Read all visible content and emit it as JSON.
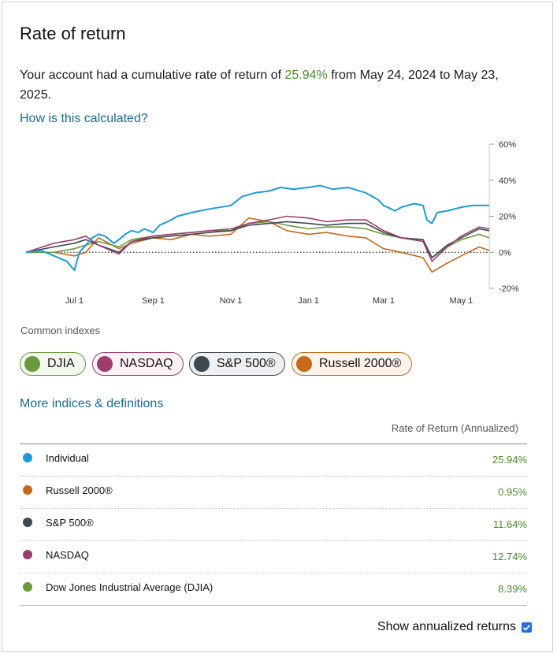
{
  "page": {
    "title": "Rate of return",
    "summary": {
      "prefix": "Your account had a cumulative rate of return of ",
      "pct": "25.94%",
      "suffix": " from May 24, 2024 to May 23, 2025."
    },
    "how_link": "How is this calculated?",
    "common_label": "Common indexes",
    "chips": [
      {
        "label": "DJIA",
        "color": "#6b9a3c",
        "border": "#6b9a3c",
        "bg": "#f3f8ee"
      },
      {
        "label": "NASDAQ",
        "color": "#9b3d6e",
        "border": "#9b3d6e",
        "bg": "#fbf1f6"
      },
      {
        "label": "S&P 500®",
        "color": "#3d4852",
        "border": "#3d4852",
        "bg": "#eef0f2"
      },
      {
        "label": "Russell 2000®",
        "color": "#c46a1a",
        "border": "#c46a1a",
        "bg": "#fcf3ea"
      }
    ],
    "more_link": "More indices & definitions",
    "table_header": "Rate of Return (Annualized)",
    "rows": [
      {
        "name": "Individual",
        "value": "25.94%",
        "color": "#1d9ad6"
      },
      {
        "name": "Russell 2000®",
        "value": "0.95%",
        "color": "#c46a1a"
      },
      {
        "name": "S&P 500®",
        "value": "11.64%",
        "color": "#3d4852"
      },
      {
        "name": "NASDAQ",
        "value": "12.74%",
        "color": "#9b3d6e"
      },
      {
        "name": "Dow Jones Industrial Average (DJIA)",
        "value": "8.39%",
        "color": "#6b9a3c"
      }
    ],
    "show_annualized": "Show annualized returns"
  },
  "chart_data": {
    "type": "line",
    "x_tick_labels": [
      "Jul 1",
      "Sep 1",
      "Nov 1",
      "Jan 1",
      "Mar 1",
      "May 1"
    ],
    "y_tick_labels": [
      "60%",
      "40%",
      "20%",
      "0%",
      "-20%"
    ],
    "ylim": [
      -20,
      60
    ],
    "x_range": [
      "2024-05-24",
      "2025-05-23"
    ],
    "zero_line": "dotted",
    "series": [
      {
        "name": "Individual",
        "color": "#1d9ad6",
        "x": [
          "2024-05-24",
          "2024-06-05",
          "2024-06-15",
          "2024-06-25",
          "2024-07-01",
          "2024-07-05",
          "2024-07-10",
          "2024-07-15",
          "2024-07-20",
          "2024-07-25",
          "2024-08-01",
          "2024-08-05",
          "2024-08-10",
          "2024-08-15",
          "2024-08-20",
          "2024-08-25",
          "2024-09-01",
          "2024-09-06",
          "2024-09-15",
          "2024-09-20",
          "2024-10-01",
          "2024-10-15",
          "2024-11-01",
          "2024-11-10",
          "2024-11-20",
          "2024-12-01",
          "2024-12-10",
          "2024-12-20",
          "2025-01-01",
          "2025-01-10",
          "2025-01-20",
          "2025-02-01",
          "2025-02-15",
          "2025-02-25",
          "2025-03-01",
          "2025-03-10",
          "2025-03-15",
          "2025-03-25",
          "2025-04-01",
          "2025-04-04",
          "2025-04-08",
          "2025-04-12",
          "2025-04-20",
          "2025-05-01",
          "2025-05-10",
          "2025-05-23"
        ],
        "y": [
          0,
          1,
          -2,
          -5,
          -10,
          0,
          4,
          8,
          10,
          9,
          5,
          7,
          10,
          12,
          11,
          13,
          11,
          15,
          18,
          20,
          22,
          24,
          26,
          31,
          33,
          34,
          36,
          35,
          36,
          37,
          35,
          36,
          33,
          29,
          26,
          23,
          25,
          27,
          26,
          18,
          16,
          22,
          23,
          25,
          26,
          26
        ]
      },
      {
        "name": "NASDAQ",
        "color": "#9b3d6e",
        "x": [
          "2024-05-24",
          "2024-06-15",
          "2024-07-01",
          "2024-07-10",
          "2024-07-20",
          "2024-08-05",
          "2024-08-15",
          "2024-09-01",
          "2024-09-15",
          "2024-10-01",
          "2024-10-15",
          "2024-11-01",
          "2024-11-15",
          "2024-12-01",
          "2024-12-15",
          "2025-01-01",
          "2025-01-15",
          "2025-02-01",
          "2025-02-15",
          "2025-03-01",
          "2025-03-15",
          "2025-04-01",
          "2025-04-08",
          "2025-04-20",
          "2025-05-01",
          "2025-05-15",
          "2025-05-23"
        ],
        "y": [
          0,
          5,
          7,
          9,
          4,
          -1,
          6,
          9,
          10,
          11,
          12,
          13,
          16,
          18,
          20,
          19,
          17,
          18,
          18,
          12,
          8,
          6,
          -5,
          3,
          9,
          14,
          13
        ]
      },
      {
        "name": "S&P 500®",
        "color": "#3d4852",
        "x": [
          "2024-05-24",
          "2024-06-15",
          "2024-07-01",
          "2024-07-10",
          "2024-07-20",
          "2024-08-05",
          "2024-08-15",
          "2024-09-01",
          "2024-09-15",
          "2024-10-01",
          "2024-10-15",
          "2024-11-01",
          "2024-11-15",
          "2024-12-01",
          "2024-12-15",
          "2025-01-01",
          "2025-01-15",
          "2025-02-01",
          "2025-02-15",
          "2025-03-01",
          "2025-03-15",
          "2025-04-01",
          "2025-04-08",
          "2025-04-20",
          "2025-05-01",
          "2025-05-15",
          "2025-05-23"
        ],
        "y": [
          0,
          3,
          5,
          7,
          4,
          0,
          6,
          8,
          9,
          10,
          11,
          12,
          15,
          16,
          17,
          16,
          15,
          16,
          16,
          11,
          8,
          7,
          -3,
          4,
          8,
          13,
          12
        ]
      },
      {
        "name": "DJIA",
        "color": "#6b9a3c",
        "x": [
          "2024-05-24",
          "2024-06-15",
          "2024-07-01",
          "2024-07-10",
          "2024-07-20",
          "2024-08-05",
          "2024-08-15",
          "2024-09-01",
          "2024-09-15",
          "2024-10-01",
          "2024-10-15",
          "2024-11-01",
          "2024-11-15",
          "2024-12-01",
          "2024-12-15",
          "2025-01-01",
          "2025-01-15",
          "2025-02-01",
          "2025-02-15",
          "2025-03-01",
          "2025-03-15",
          "2025-04-01",
          "2025-04-08",
          "2025-04-20",
          "2025-05-01",
          "2025-05-15",
          "2025-05-23"
        ],
        "y": [
          0,
          0,
          2,
          4,
          6,
          3,
          7,
          9,
          10,
          11,
          12,
          12,
          16,
          17,
          15,
          13,
          14,
          14,
          13,
          10,
          8,
          7,
          -3,
          3,
          7,
          10,
          8
        ]
      },
      {
        "name": "Russell 2000®",
        "color": "#c46a1a",
        "x": [
          "2024-05-24",
          "2024-06-15",
          "2024-07-01",
          "2024-07-10",
          "2024-07-20",
          "2024-08-05",
          "2024-08-15",
          "2024-09-01",
          "2024-09-15",
          "2024-10-01",
          "2024-10-15",
          "2024-11-01",
          "2024-11-15",
          "2024-12-01",
          "2024-12-15",
          "2025-01-01",
          "2025-01-15",
          "2025-02-01",
          "2025-02-15",
          "2025-03-01",
          "2025-03-15",
          "2025-04-01",
          "2025-04-08",
          "2025-04-20",
          "2025-05-01",
          "2025-05-15",
          "2025-05-23"
        ],
        "y": [
          0,
          0,
          -2,
          0,
          8,
          2,
          5,
          8,
          7,
          10,
          9,
          10,
          19,
          17,
          12,
          10,
          11,
          9,
          8,
          2,
          0,
          -3,
          -11,
          -6,
          -2,
          3,
          1
        ]
      }
    ]
  }
}
